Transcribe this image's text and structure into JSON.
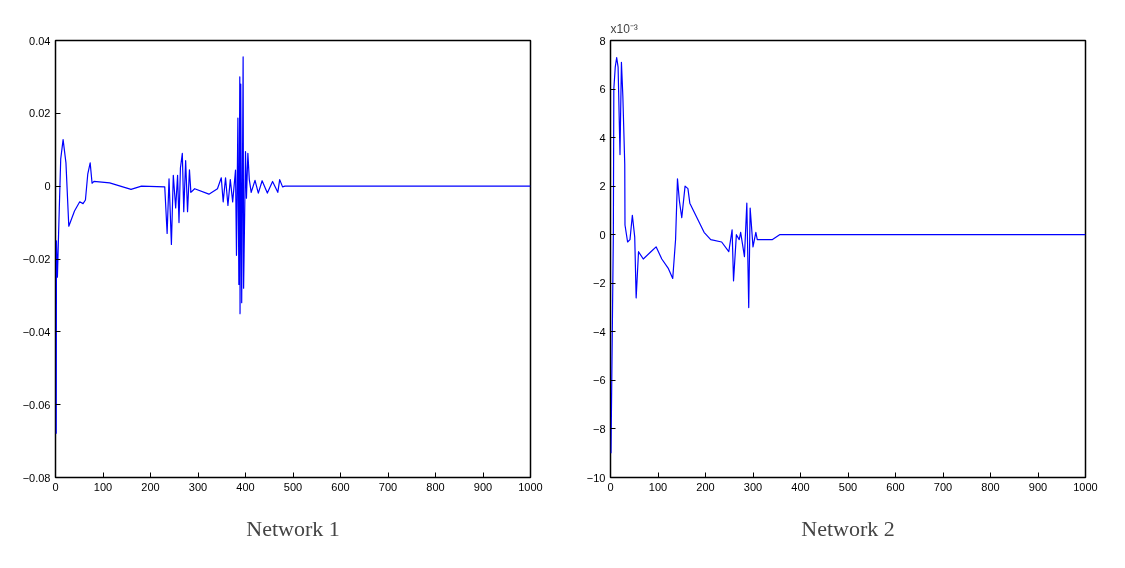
{
  "chart_data": [
    {
      "type": "line",
      "title": "Network 1",
      "grid": false,
      "xlim": [
        0,
        1000
      ],
      "ylim": [
        -0.08,
        0.04
      ],
      "xticks": [
        0,
        100,
        200,
        300,
        400,
        500,
        600,
        700,
        800,
        900,
        1000
      ],
      "yticks": [
        -0.08,
        -0.06,
        -0.04,
        -0.02,
        0,
        0.02,
        0.04
      ],
      "x": [
        1.5,
        2,
        4,
        8,
        11,
        16,
        22,
        28,
        40,
        51,
        58,
        63,
        68,
        73,
        77,
        81,
        114,
        159,
        181,
        230,
        235,
        239,
        244,
        248,
        253,
        257,
        260,
        263,
        267,
        270,
        274,
        278,
        282,
        285,
        293,
        323,
        341,
        349,
        353,
        358,
        363,
        368,
        373,
        379,
        381,
        384,
        386,
        388,
        388.5,
        390,
        392,
        395,
        396,
        398,
        400,
        402,
        405,
        408,
        412,
        420,
        427,
        435,
        446,
        457,
        468,
        472,
        478,
        483,
        1000
      ],
      "series": [
        {
          "color": "#0000ff",
          "values": [
            -0.068,
            -0.015,
            -0.025,
            -0.006,
            0.0075,
            0.0128,
            0.0064,
            -0.011,
            -0.0068,
            -0.0043,
            -0.0048,
            -0.0038,
            0.0034,
            0.0064,
            0.0008,
            0.0013,
            0.0009,
            -0.0009,
            0,
            -0.0002,
            -0.013,
            0.002,
            -0.016,
            0.003,
            -0.006,
            0.003,
            -0.01,
            0.005,
            0.009,
            -0.007,
            0.007,
            -0.007,
            0.0045,
            -0.0017,
            -0.0007,
            -0.0022,
            -0.0007,
            0.0023,
            -0.0043,
            0.0023,
            -0.0053,
            0.0018,
            -0.0043,
            0.0044,
            -0.019,
            0.0187,
            -0.027,
            0.03,
            -0.035,
            0.028,
            -0.032,
            0.0355,
            -0.028,
            -0.0099,
            0.0095,
            -0.0033,
            0.009,
            0.0018,
            -0.0017,
            0.0016,
            -0.0019,
            0.0015,
            -0.0019,
            0.0013,
            -0.0017,
            0.0018,
            -0.0002,
            0,
            0
          ]
        }
      ]
    },
    {
      "type": "line",
      "title": "Network 2",
      "grid": false,
      "annotations": [
        "x10⁻³"
      ],
      "xlim": [
        0,
        1000
      ],
      "ylim": [
        -10,
        8
      ],
      "xticks": [
        0,
        100,
        200,
        300,
        400,
        500,
        600,
        700,
        800,
        900,
        1000
      ],
      "yticks": [
        -10,
        -8,
        -6,
        -4,
        -2,
        0,
        2,
        4,
        6,
        8
      ],
      "x": [
        1,
        4,
        6,
        7,
        10,
        13,
        16,
        20,
        23,
        26,
        30,
        30.5,
        36,
        41,
        46,
        51,
        54,
        59,
        69,
        85,
        96,
        108,
        122,
        131,
        137,
        141,
        145,
        150,
        157,
        163,
        167,
        182,
        197,
        211,
        234,
        249,
        256,
        259,
        265,
        271,
        274,
        282,
        287,
        291,
        294,
        300,
        306,
        309,
        341,
        356,
        1000
      ],
      "series": [
        {
          "color": "#0000ff",
          "values": [
            -9.0,
            -3.6,
            0,
            6.0,
            6.9,
            7.3,
            6.9,
            3.3,
            7.1,
            5.7,
            2.9,
            0.4,
            -0.3,
            -0.2,
            0.8,
            -0.1,
            -2.6,
            -0.7,
            -1.0,
            -0.7,
            -0.5,
            -1.0,
            -1.4,
            -1.8,
            -0.2,
            2.3,
            1.4,
            0.7,
            2.0,
            1.9,
            1.3,
            0.7,
            0.1,
            -0.2,
            -0.3,
            -0.7,
            0.2,
            -1.9,
            0,
            -0.2,
            0.1,
            -0.9,
            1.3,
            -3.0,
            1.1,
            -0.5,
            0.1,
            -0.2,
            -0.2,
            0,
            0
          ]
        }
      ]
    }
  ]
}
